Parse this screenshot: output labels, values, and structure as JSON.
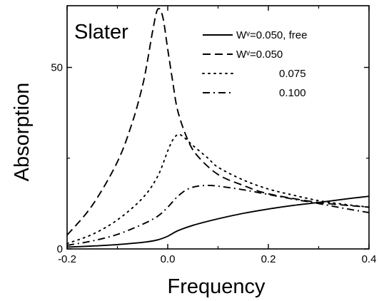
{
  "chart_data": {
    "type": "line",
    "panel_label": "Slater",
    "xlabel": "Frequency",
    "ylabel": "Absorption",
    "xlim": [
      -0.2,
      0.4
    ],
    "ylim": [
      0,
      67
    ],
    "x_ticks": [
      -0.2,
      0.0,
      0.2,
      0.4
    ],
    "x_tick_labels": [
      "-0.2",
      "0.0",
      "0.2",
      "0.4"
    ],
    "y_ticks": [
      0,
      50
    ],
    "y_tick_labels": [
      "0",
      "50"
    ],
    "grid": false,
    "legend_position": "top-right",
    "series": [
      {
        "name": "Wᵛ=0.050, free",
        "style": "solid",
        "x": [
          -0.2,
          -0.15,
          -0.1,
          -0.05,
          -0.02,
          0.0,
          0.02,
          0.05,
          0.1,
          0.15,
          0.2,
          0.25,
          0.3,
          0.35,
          0.4
        ],
        "y": [
          0.5,
          0.8,
          1.2,
          1.8,
          2.5,
          3.5,
          5.0,
          6.5,
          8.3,
          9.8,
          11.0,
          12.0,
          12.8,
          13.7,
          14.5
        ]
      },
      {
        "name": "Wᵛ=0.050",
        "style": "dashed",
        "x": [
          -0.2,
          -0.15,
          -0.1,
          -0.07,
          -0.05,
          -0.04,
          -0.03,
          -0.02,
          -0.01,
          0.0,
          0.01,
          0.02,
          0.04,
          0.06,
          0.1,
          0.15,
          0.2,
          0.3,
          0.4
        ],
        "y": [
          3.8,
          12.0,
          24.0,
          35.0,
          45.0,
          52.0,
          60.0,
          66.0,
          64.0,
          55.0,
          46.0,
          38.0,
          30.0,
          25.5,
          20.5,
          17.5,
          15.2,
          12.8,
          11.5
        ]
      },
      {
        "name": "0.075",
        "style": "dotted",
        "x": [
          -0.2,
          -0.15,
          -0.1,
          -0.05,
          -0.02,
          0.0,
          0.01,
          0.02,
          0.03,
          0.05,
          0.08,
          0.1,
          0.15,
          0.2,
          0.25,
          0.3,
          0.35,
          0.4
        ],
        "y": [
          1.5,
          4.0,
          8.0,
          14.0,
          20.0,
          27.0,
          30.0,
          31.5,
          31.0,
          28.5,
          25.0,
          22.5,
          19.0,
          16.5,
          14.8,
          13.3,
          12.3,
          11.5
        ]
      },
      {
        "name": "0.100",
        "style": "dashdot",
        "x": [
          -0.2,
          -0.15,
          -0.1,
          -0.05,
          -0.02,
          0.0,
          0.02,
          0.04,
          0.06,
          0.08,
          0.1,
          0.15,
          0.2,
          0.25,
          0.3,
          0.35,
          0.4
        ],
        "y": [
          1.0,
          2.2,
          4.0,
          6.8,
          9.0,
          11.5,
          14.5,
          16.5,
          17.3,
          17.5,
          17.3,
          16.3,
          15.0,
          13.7,
          12.5,
          11.2,
          10.0
        ]
      }
    ]
  }
}
